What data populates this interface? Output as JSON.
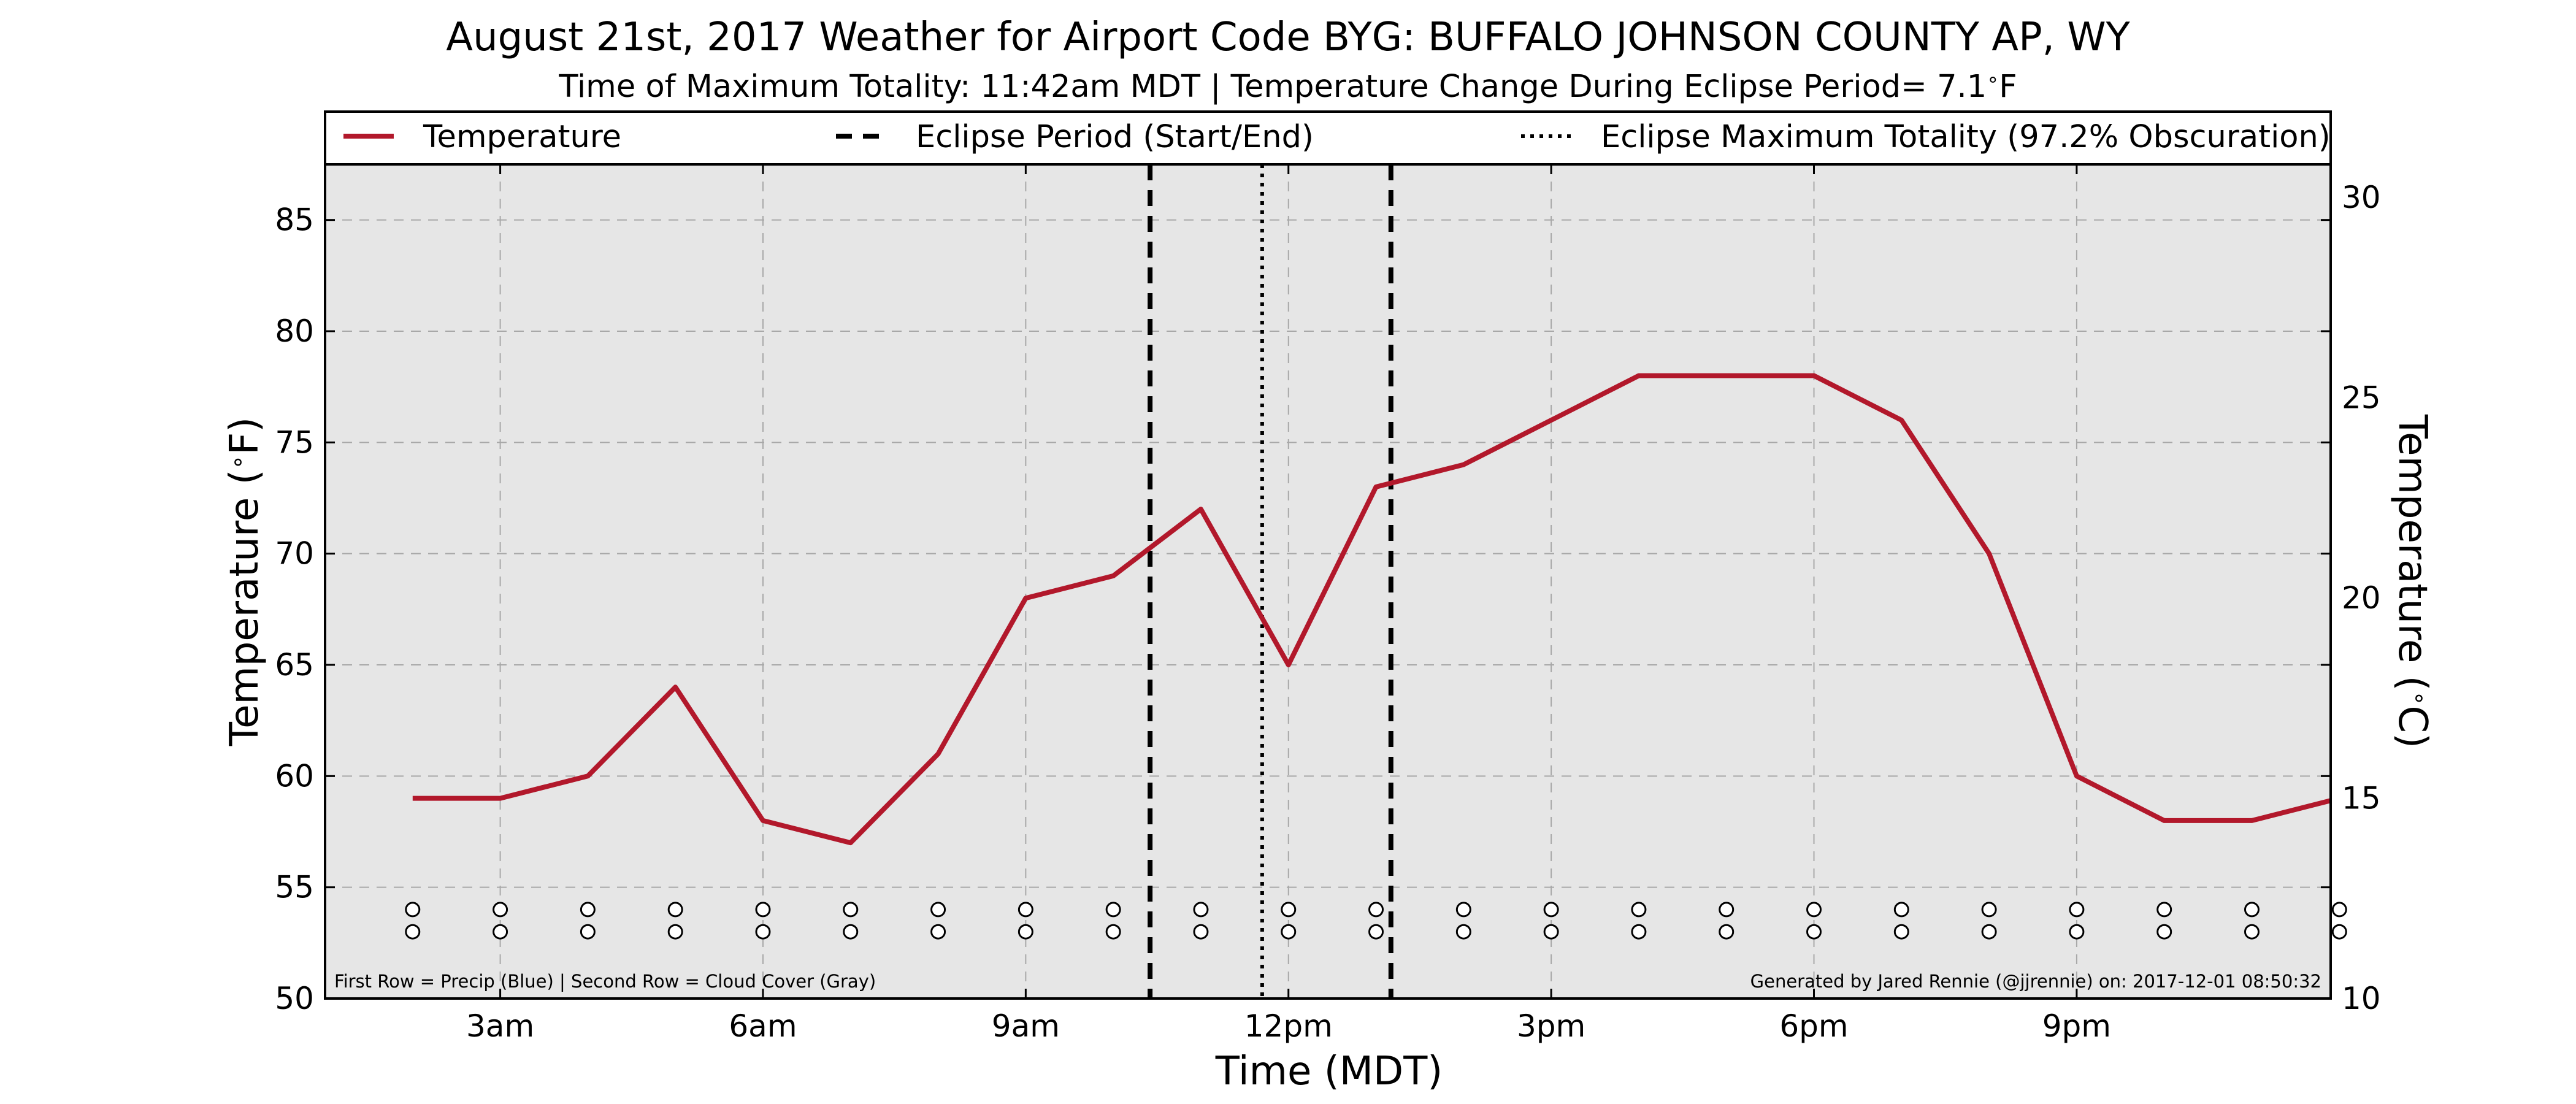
{
  "chart_data": {
    "type": "line",
    "title": "August 21st, 2017 Weather for Airport Code BYG: BUFFALO JOHNSON COUNTY AP, WY",
    "subtitle_prefix": "Time of Maximum Totality: 11:42am MDT | Temperature Change During Eclipse Period= 7.1",
    "subtitle_degree": "∘",
    "subtitle_unit": "F",
    "xlabel": "Time (MDT)",
    "ylabel_left_prefix": "Temperature (",
    "ylabel_left_degree": "∘",
    "ylabel_left_suffix": "F)",
    "ylabel_right_prefix": "Temperature (",
    "ylabel_right_degree": "∘",
    "ylabel_right_suffix": "C)",
    "xlim": [
      1,
      23.9
    ],
    "ylim": [
      50,
      87.5
    ],
    "ylim_right_celsius": [
      10,
      30.83
    ],
    "x_ticks": [
      {
        "value": 3,
        "label": "3am"
      },
      {
        "value": 6,
        "label": "6am"
      },
      {
        "value": 9,
        "label": "9am"
      },
      {
        "value": 12,
        "label": "12pm"
      },
      {
        "value": 15,
        "label": "3pm"
      },
      {
        "value": 18,
        "label": "6pm"
      },
      {
        "value": 21,
        "label": "9pm"
      }
    ],
    "y_ticks": [
      50,
      55,
      60,
      65,
      70,
      75,
      80,
      85
    ],
    "y_ticks_right": [
      10,
      15,
      20,
      25,
      30
    ],
    "grid": true,
    "legend_position": "top",
    "series": [
      {
        "name": "Temperature",
        "color": "#b2182b",
        "x": [
          2,
          3,
          4,
          5,
          6,
          7,
          8,
          9,
          10,
          11,
          12,
          13,
          14,
          15,
          16,
          17,
          18,
          19,
          20,
          21,
          22,
          23,
          24
        ],
        "values": [
          59,
          59,
          60,
          64,
          58,
          57,
          61,
          68,
          69,
          72,
          65,
          73,
          74,
          76,
          78,
          78,
          78,
          76,
          70,
          60,
          58,
          58,
          59
        ]
      }
    ],
    "eclipse": {
      "start_x": 10.42,
      "end_x": 13.17,
      "max_x": 11.7,
      "legend_period": "Eclipse Period (Start/End)",
      "legend_max": "Eclipse Maximum Totality (97.2% Obscuration)"
    },
    "markers": {
      "x": [
        2,
        3,
        4,
        5,
        6,
        7,
        8,
        9,
        10,
        11,
        12,
        13,
        14,
        15,
        16,
        17,
        18,
        19,
        20,
        21,
        22,
        23,
        24
      ],
      "row1_y": 54,
      "row2_y": 53,
      "symbol": "o",
      "note": "First Row = Precip (Blue) | Second Row = Cloud Cover (Gray)"
    },
    "credit": "Generated by Jared Rennie (@jjrennie) on: 2017-12-01 08:50:32"
  }
}
